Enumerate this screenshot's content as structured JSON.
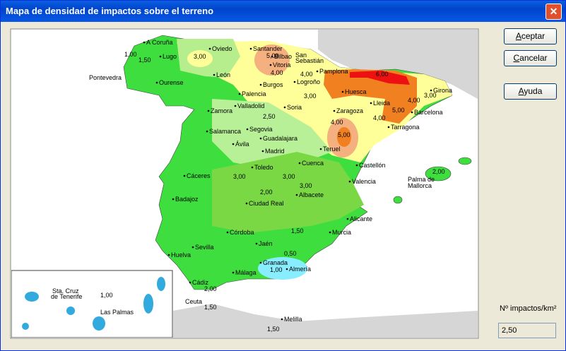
{
  "window": {
    "title": "Mapa de densidad de impactos sobre el terreno"
  },
  "buttons": [
    "Aceptar",
    "Cancelar",
    "Ayuda"
  ],
  "map": {
    "labels": [
      "A Coruña",
      "Oviedo",
      "Santander",
      "Bilbao",
      "San",
      "Sebastián",
      "Vitoria",
      "Pamplona",
      "Lugo",
      "Ourense",
      "Pontevedra",
      "León",
      "Burgos",
      "Logroño",
      "Huesca",
      "Girona",
      "Palencia",
      "Lleida",
      "Zamora",
      "Valladolid",
      "Soria",
      "Zaragoza",
      "Barcelona",
      "Tarragona",
      "Salamanca",
      "Segovia",
      "Guadalajara",
      "Ávila",
      "Madrid",
      "Teruel",
      "Toledo",
      "Cuenca",
      "Castellón",
      "Cáceres",
      "Valencia",
      "Palma de",
      "Mallorca",
      "Albacete",
      "Badajoz",
      "Ciudad Real",
      "Alicante",
      "Córdoba",
      "Murcia",
      "Jaén",
      "Sevilla",
      "Huelva",
      "Granada",
      "Almería",
      "Málaga",
      "Cádiz",
      "Ceuta",
      "Melilla",
      "Sta. Cruz",
      "de Tenerife",
      "Las Palmas",
      "1,00",
      "1,50",
      "3,00",
      "5,00",
      "4,00",
      "4,00",
      "6,00",
      "3,00",
      "4,00",
      "3,00",
      "5,00",
      "4,00",
      "2,50",
      "4,00",
      "5,00",
      "3,00",
      "3,00",
      "3,00",
      "2,00",
      "1,50",
      "0,50",
      "1,00",
      "2,00",
      "1,50",
      "1,50",
      "1,00",
      "2,00"
    ]
  },
  "density": {
    "label": "Nº impactos/km²",
    "value": "2,50"
  }
}
